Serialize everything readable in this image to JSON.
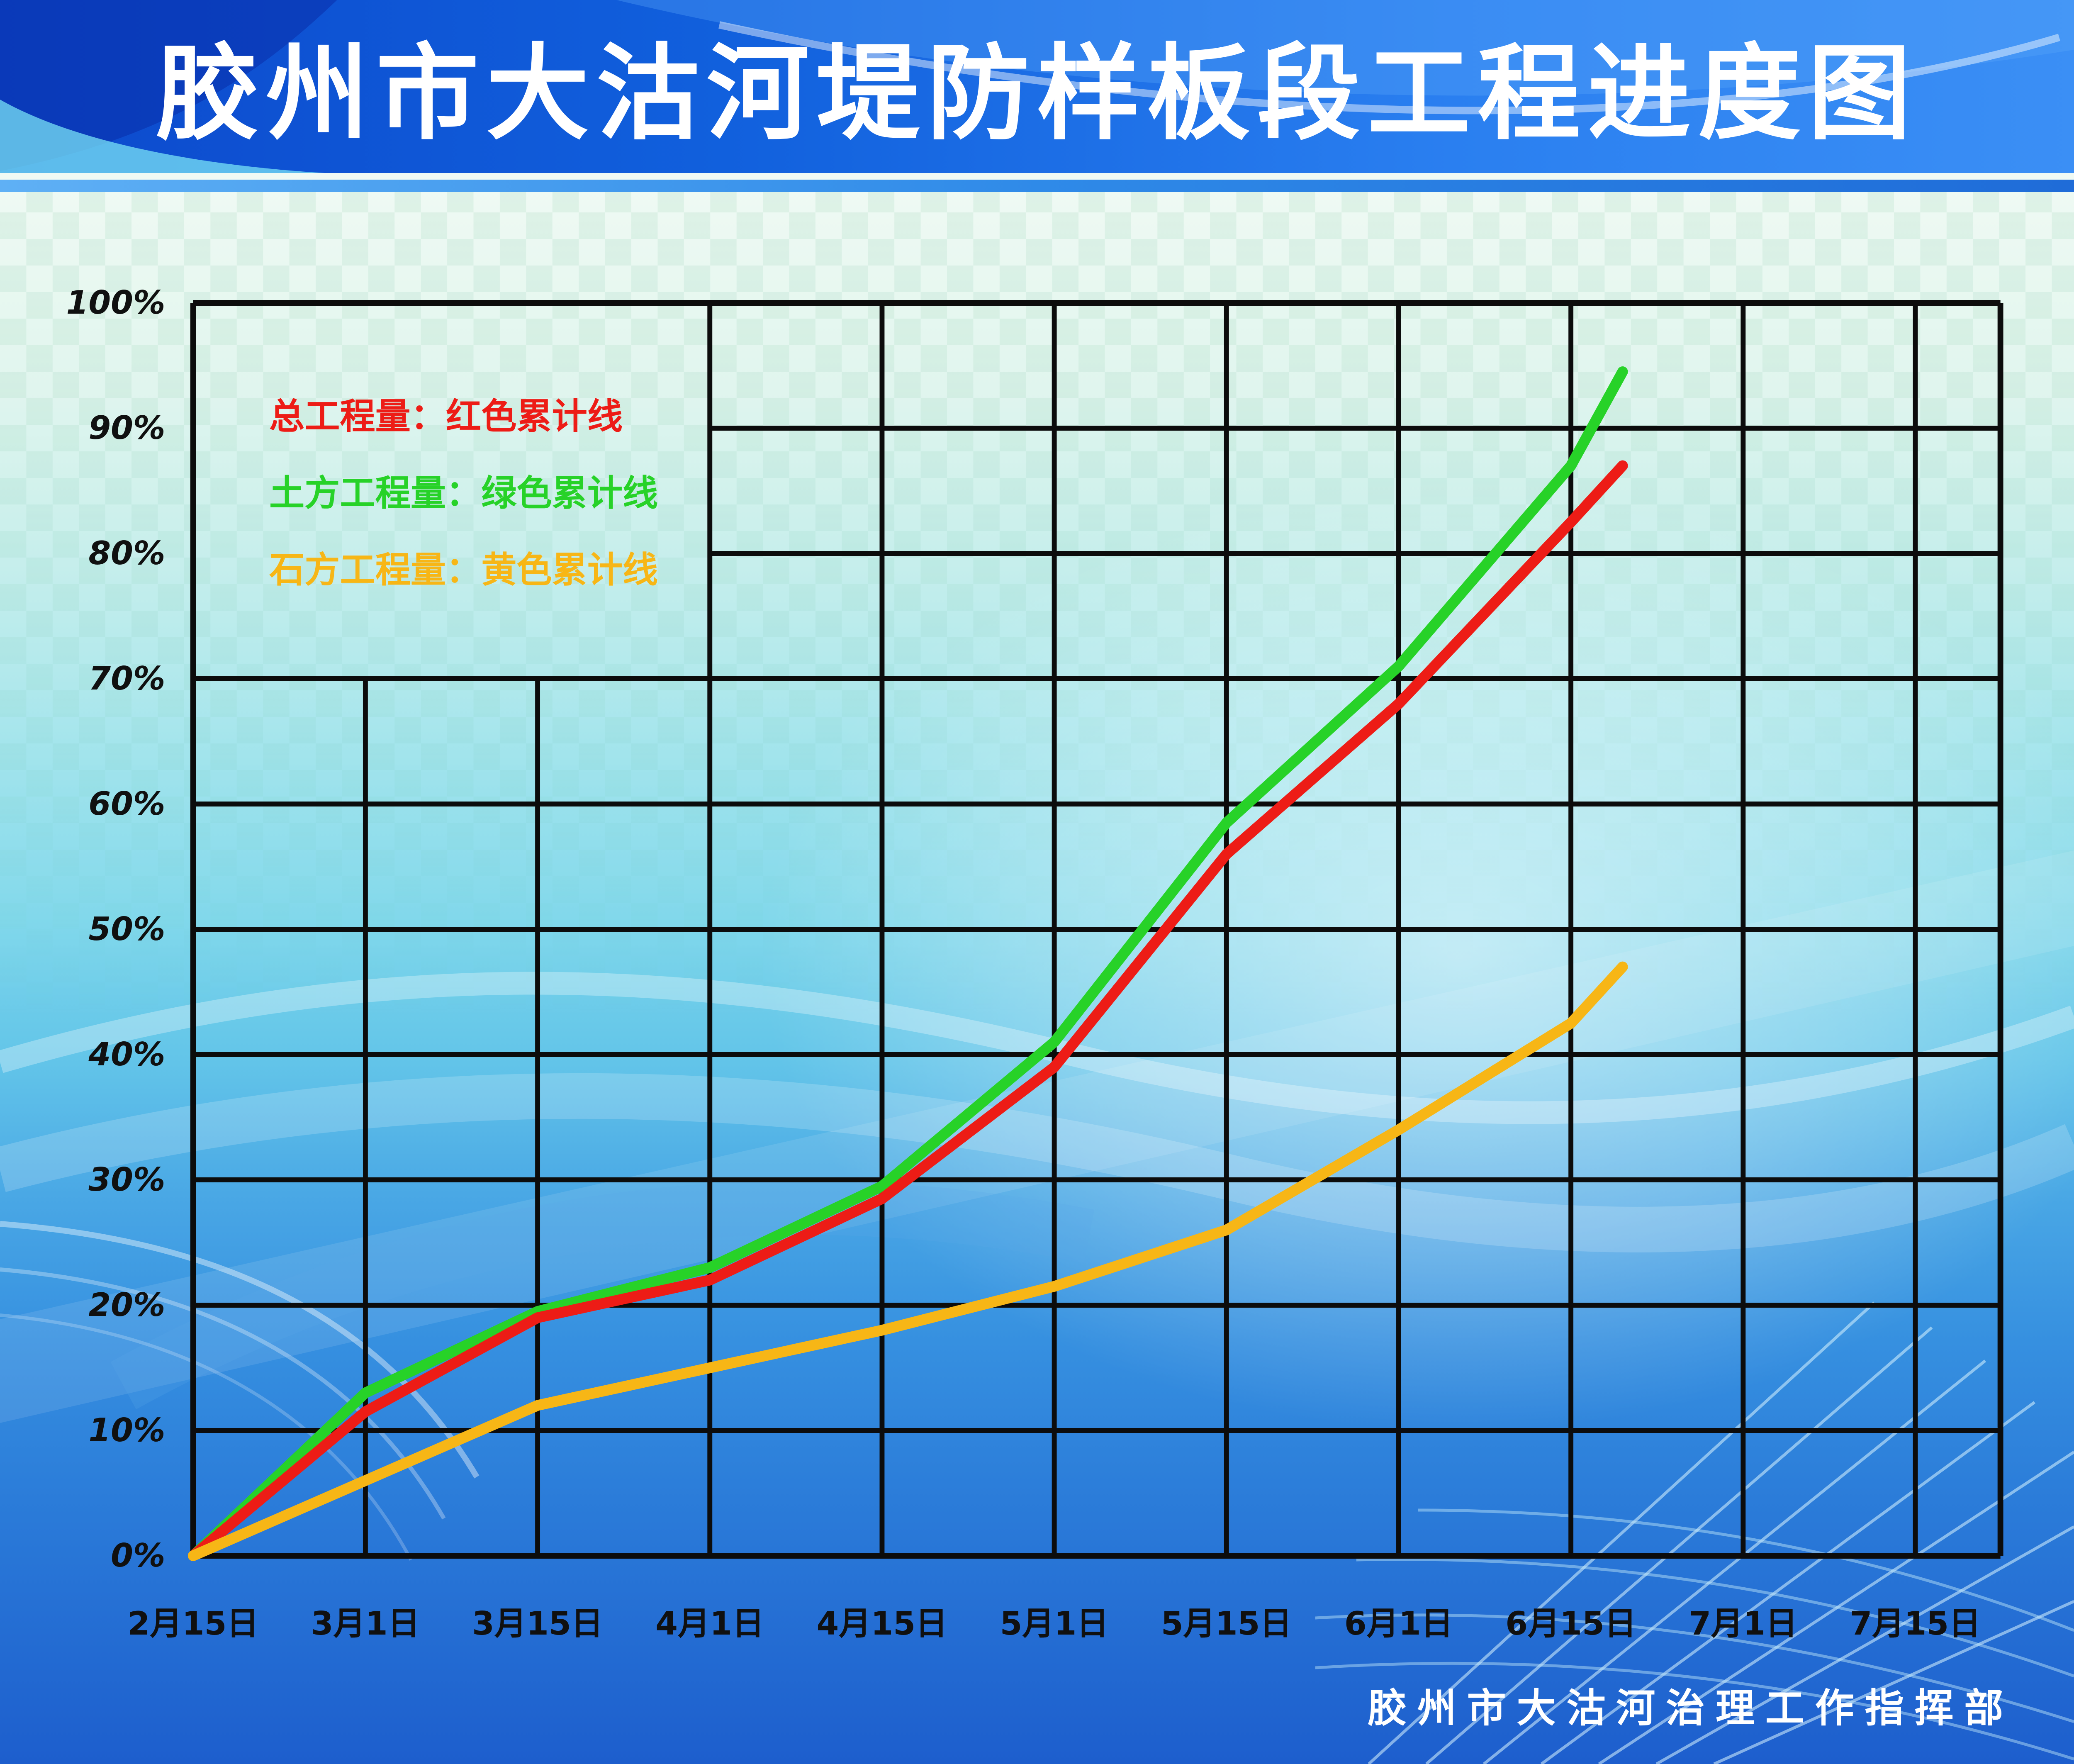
{
  "header": {
    "title": "胶州市大沽河堤防样板段工程进度图"
  },
  "legend": {
    "items": [
      {
        "label": "总工程量：红色累计线",
        "color": "#ed1c16"
      },
      {
        "label": "土方工程量：绿色累计线",
        "color": "#27d228"
      },
      {
        "label": "石方工程量：黄色累计线",
        "color": "#f7b616"
      }
    ]
  },
  "footer": {
    "credit": "胶州市大沽河治理工作指挥部"
  },
  "chart_data": {
    "type": "line",
    "title": "胶州市大沽河堤防样板段工程进度图",
    "x_tick_labels": [
      "2月15日",
      "3月1日",
      "3月15日",
      "4月1日",
      "4月15日",
      "5月1日",
      "5月15日",
      "6月1日",
      "6月15日",
      "7月1日",
      "7月15日"
    ],
    "y_tick_labels": [
      "0%",
      "10%",
      "20%",
      "30%",
      "40%",
      "50%",
      "60%",
      "70%",
      "80%",
      "90%",
      "100%"
    ],
    "ylim": [
      0,
      100
    ],
    "grid": "on",
    "legend_position": "top-left inside plot, gridlines hidden in legend zone",
    "x_units": "half-month tick index, 0 = 2月15日",
    "series": [
      {
        "id": "green",
        "name": "土方工程量",
        "legend_label": "土方工程量：绿色累计线",
        "color": "#27d228",
        "x": [
          0,
          1,
          2,
          3,
          4,
          5,
          6,
          7,
          8,
          8.3
        ],
        "values": [
          0,
          13,
          19.5,
          23,
          29.5,
          41,
          58.5,
          71,
          87,
          94.5
        ]
      },
      {
        "id": "red",
        "name": "总工程量",
        "legend_label": "总工程量：红色累计线",
        "color": "#ed1c16",
        "x": [
          0,
          1,
          2,
          3,
          4,
          5,
          6,
          7,
          8,
          8.3
        ],
        "values": [
          0,
          11.5,
          19,
          22,
          28.5,
          39,
          56,
          68,
          82.5,
          87
        ]
      },
      {
        "id": "yellow",
        "name": "石方工程量",
        "legend_label": "石方工程量：黄色累计线",
        "color": "#f7b616",
        "x": [
          0,
          1,
          2,
          3,
          4,
          5,
          6,
          7,
          8,
          8.3
        ],
        "values": [
          0,
          6,
          12,
          15,
          18,
          21.5,
          26,
          34,
          42.5,
          47
        ]
      }
    ]
  }
}
